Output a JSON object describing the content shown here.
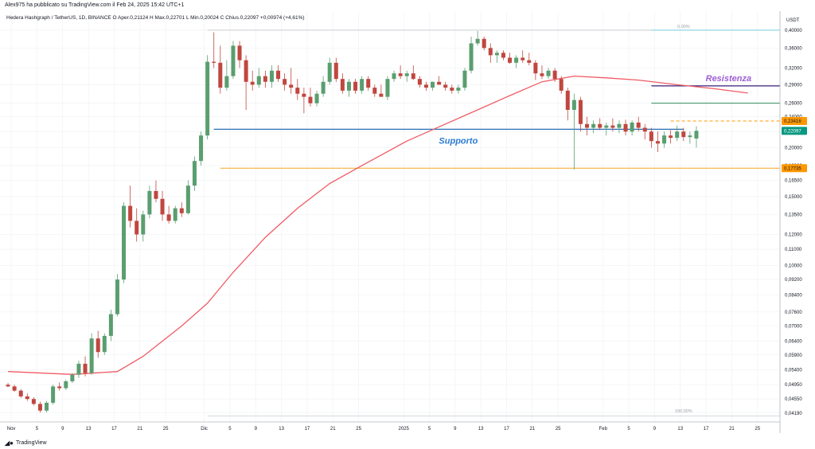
{
  "header": {
    "published": "Alex975 ha pubblicato su TradingView.com il Feb 24, 2025 15:42 UTC+1",
    "legend": "Hedera Hashgraph / TetherUS, 1D, BINANCE  O  Aper.0,21124  H  Max.0,22701  L  Min.0,20024  C  Chius.0,22097  +0,00974 (+4,61%)"
  },
  "footer": {
    "brand": "TradingView",
    "icon": "tradingview-logo-icon"
  },
  "chart_data": {
    "type": "candlestick",
    "currency": "USDT",
    "y_scale": "log",
    "ylim": [
      0.0405,
      0.415
    ],
    "y_ticks": [
      "0,40000",
      "0,36000",
      "0,32000",
      "0,29000",
      "0,26000",
      "0,24000",
      "0,22000",
      "0,20000",
      "0,18000",
      "0,16500",
      "0,15000",
      "0,13500",
      "0,12000",
      "0,11000",
      "0,10000",
      "0,09200",
      "0,08400",
      "0,07600",
      "0,07000",
      "0,06400",
      "0,05900",
      "0,05400",
      "0,04950",
      "0,04550",
      "0,04190"
    ],
    "x_labels": [
      {
        "label": "Nov",
        "date": "2024-11-01"
      },
      {
        "label": "5",
        "date": "2024-11-05"
      },
      {
        "label": "9",
        "date": "2024-11-09"
      },
      {
        "label": "13",
        "date": "2024-11-13"
      },
      {
        "label": "17",
        "date": "2024-11-17"
      },
      {
        "label": "21",
        "date": "2024-11-21"
      },
      {
        "label": "25",
        "date": "2024-11-25"
      },
      {
        "label": "Dic",
        "date": "2024-12-01"
      },
      {
        "label": "5",
        "date": "2024-12-05"
      },
      {
        "label": "9",
        "date": "2024-12-09"
      },
      {
        "label": "13",
        "date": "2024-12-13"
      },
      {
        "label": "17",
        "date": "2024-12-17"
      },
      {
        "label": "21",
        "date": "2024-12-21"
      },
      {
        "label": "25",
        "date": "2024-12-25"
      },
      {
        "label": "2025",
        "date": "2025-01-01"
      },
      {
        "label": "5",
        "date": "2025-01-05"
      },
      {
        "label": "9",
        "date": "2025-01-09"
      },
      {
        "label": "13",
        "date": "2025-01-13"
      },
      {
        "label": "17",
        "date": "2025-01-17"
      },
      {
        "label": "21",
        "date": "2025-01-21"
      },
      {
        "label": "25",
        "date": "2025-01-25"
      },
      {
        "label": "Feb",
        "date": "2025-02-01"
      },
      {
        "label": "5",
        "date": "2025-02-05"
      },
      {
        "label": "9",
        "date": "2025-02-09"
      },
      {
        "label": "13",
        "date": "2025-02-13"
      },
      {
        "label": "17",
        "date": "2025-02-17"
      },
      {
        "label": "21",
        "date": "2025-02-21"
      },
      {
        "label": "25",
        "date": "2025-02-25"
      }
    ],
    "first_date": "2024-10-31",
    "candles": [
      [
        0.0495,
        0.05,
        0.0488,
        0.049
      ],
      [
        0.049,
        0.0495,
        0.0475,
        0.0478
      ],
      [
        0.0478,
        0.0482,
        0.0458,
        0.0462
      ],
      [
        0.0462,
        0.047,
        0.045,
        0.0455
      ],
      [
        0.0455,
        0.046,
        0.0438,
        0.0442
      ],
      [
        0.0442,
        0.0448,
        0.042,
        0.0425
      ],
      [
        0.0425,
        0.045,
        0.042,
        0.0445
      ],
      [
        0.0445,
        0.0495,
        0.044,
        0.049
      ],
      [
        0.049,
        0.0502,
        0.0478,
        0.0485
      ],
      [
        0.0485,
        0.051,
        0.048,
        0.0505
      ],
      [
        0.0505,
        0.053,
        0.05,
        0.0525
      ],
      [
        0.0525,
        0.057,
        0.0515,
        0.056
      ],
      [
        0.056,
        0.0585,
        0.052,
        0.053
      ],
      [
        0.053,
        0.067,
        0.0525,
        0.065
      ],
      [
        0.065,
        0.068,
        0.058,
        0.06
      ],
      [
        0.06,
        0.067,
        0.059,
        0.066
      ],
      [
        0.066,
        0.077,
        0.064,
        0.075
      ],
      [
        0.075,
        0.095,
        0.074,
        0.092
      ],
      [
        0.092,
        0.145,
        0.09,
        0.142
      ],
      [
        0.142,
        0.16,
        0.125,
        0.13
      ],
      [
        0.13,
        0.14,
        0.115,
        0.12
      ],
      [
        0.12,
        0.138,
        0.115,
        0.135
      ],
      [
        0.135,
        0.16,
        0.132,
        0.155
      ],
      [
        0.155,
        0.165,
        0.145,
        0.148
      ],
      [
        0.148,
        0.155,
        0.13,
        0.135
      ],
      [
        0.135,
        0.142,
        0.128,
        0.13
      ],
      [
        0.13,
        0.142,
        0.128,
        0.14
      ],
      [
        0.14,
        0.145,
        0.133,
        0.136
      ],
      [
        0.136,
        0.165,
        0.135,
        0.16
      ],
      [
        0.16,
        0.19,
        0.155,
        0.185
      ],
      [
        0.185,
        0.22,
        0.18,
        0.215
      ],
      [
        0.215,
        0.345,
        0.21,
        0.332
      ],
      [
        0.332,
        0.395,
        0.32,
        0.33
      ],
      [
        0.33,
        0.365,
        0.275,
        0.285
      ],
      [
        0.285,
        0.335,
        0.28,
        0.305
      ],
      [
        0.305,
        0.375,
        0.3,
        0.365
      ],
      [
        0.365,
        0.375,
        0.32,
        0.335
      ],
      [
        0.335,
        0.345,
        0.25,
        0.295
      ],
      [
        0.295,
        0.315,
        0.28,
        0.29
      ],
      [
        0.29,
        0.32,
        0.285,
        0.305
      ],
      [
        0.305,
        0.315,
        0.285,
        0.295
      ],
      [
        0.295,
        0.325,
        0.285,
        0.315
      ],
      [
        0.315,
        0.325,
        0.295,
        0.3
      ],
      [
        0.3,
        0.31,
        0.28,
        0.29
      ],
      [
        0.29,
        0.32,
        0.275,
        0.285
      ],
      [
        0.285,
        0.3,
        0.265,
        0.275
      ],
      [
        0.275,
        0.285,
        0.245,
        0.27
      ],
      [
        0.27,
        0.285,
        0.255,
        0.26
      ],
      [
        0.26,
        0.28,
        0.255,
        0.275
      ],
      [
        0.275,
        0.305,
        0.27,
        0.295
      ],
      [
        0.295,
        0.34,
        0.29,
        0.33
      ],
      [
        0.33,
        0.34,
        0.295,
        0.3
      ],
      [
        0.3,
        0.31,
        0.275,
        0.28
      ],
      [
        0.28,
        0.3,
        0.27,
        0.295
      ],
      [
        0.295,
        0.3,
        0.275,
        0.28
      ],
      [
        0.28,
        0.305,
        0.275,
        0.3
      ],
      [
        0.3,
        0.305,
        0.28,
        0.285
      ],
      [
        0.285,
        0.29,
        0.27,
        0.275
      ],
      [
        0.275,
        0.29,
        0.27,
        0.27
      ],
      [
        0.27,
        0.305,
        0.265,
        0.3
      ],
      [
        0.3,
        0.315,
        0.295,
        0.31
      ],
      [
        0.31,
        0.325,
        0.3,
        0.305
      ],
      [
        0.305,
        0.315,
        0.295,
        0.31
      ],
      [
        0.31,
        0.325,
        0.298,
        0.3
      ],
      [
        0.3,
        0.305,
        0.285,
        0.29
      ],
      [
        0.29,
        0.295,
        0.28,
        0.285
      ],
      [
        0.285,
        0.295,
        0.28,
        0.295
      ],
      [
        0.295,
        0.305,
        0.29,
        0.29
      ],
      [
        0.29,
        0.295,
        0.28,
        0.285
      ],
      [
        0.285,
        0.29,
        0.275,
        0.28
      ],
      [
        0.28,
        0.29,
        0.275,
        0.285
      ],
      [
        0.285,
        0.32,
        0.28,
        0.315
      ],
      [
        0.315,
        0.385,
        0.31,
        0.37
      ],
      [
        0.37,
        0.398,
        0.365,
        0.38
      ],
      [
        0.38,
        0.385,
        0.355,
        0.36
      ],
      [
        0.36,
        0.37,
        0.33,
        0.345
      ],
      [
        0.345,
        0.355,
        0.33,
        0.35
      ],
      [
        0.35,
        0.355,
        0.335,
        0.34
      ],
      [
        0.34,
        0.35,
        0.328,
        0.33
      ],
      [
        0.33,
        0.345,
        0.32,
        0.34
      ],
      [
        0.34,
        0.355,
        0.33,
        0.335
      ],
      [
        0.335,
        0.35,
        0.325,
        0.33
      ],
      [
        0.33,
        0.335,
        0.298,
        0.31
      ],
      [
        0.31,
        0.325,
        0.3,
        0.305
      ],
      [
        0.305,
        0.32,
        0.3,
        0.315
      ],
      [
        0.315,
        0.32,
        0.295,
        0.3
      ],
      [
        0.3,
        0.305,
        0.275,
        0.28
      ],
      [
        0.28,
        0.285,
        0.235,
        0.25
      ],
      [
        0.25,
        0.275,
        0.176,
        0.265
      ],
      [
        0.265,
        0.27,
        0.22,
        0.23
      ],
      [
        0.23,
        0.24,
        0.215,
        0.225
      ],
      [
        0.225,
        0.235,
        0.218,
        0.23
      ],
      [
        0.23,
        0.238,
        0.222,
        0.225
      ],
      [
        0.225,
        0.232,
        0.215,
        0.228
      ],
      [
        0.228,
        0.238,
        0.22,
        0.225
      ],
      [
        0.225,
        0.235,
        0.218,
        0.23
      ],
      [
        0.23,
        0.236,
        0.215,
        0.22
      ],
      [
        0.22,
        0.235,
        0.215,
        0.232
      ],
      [
        0.232,
        0.24,
        0.22,
        0.225
      ],
      [
        0.225,
        0.23,
        0.21,
        0.22
      ],
      [
        0.22,
        0.225,
        0.2,
        0.208
      ],
      [
        0.208,
        0.22,
        0.195,
        0.205
      ],
      [
        0.205,
        0.22,
        0.2,
        0.215
      ],
      [
        0.215,
        0.222,
        0.205,
        0.212
      ],
      [
        0.212,
        0.228,
        0.208,
        0.22
      ],
      [
        0.22,
        0.225,
        0.208,
        0.213
      ],
      [
        0.213,
        0.22,
        0.205,
        0.215
      ],
      [
        0.2112,
        0.227,
        0.2002,
        0.221
      ]
    ],
    "moving_average": [
      [
        "2024-10-31",
        0.0535
      ],
      [
        "2024-11-10",
        0.0526
      ],
      [
        "2024-11-17",
        0.0535
      ],
      [
        "2024-11-21",
        0.0585
      ],
      [
        "2024-11-27",
        0.07
      ],
      [
        "2024-12-01",
        0.08
      ],
      [
        "2024-12-05",
        0.096
      ],
      [
        "2024-12-10",
        0.118
      ],
      [
        "2024-12-15",
        0.14
      ],
      [
        "2024-12-20",
        0.162
      ],
      [
        "2024-12-25",
        0.18
      ],
      [
        "2025-01-01",
        0.208
      ],
      [
        "2025-01-07",
        0.23
      ],
      [
        "2025-01-12",
        0.25
      ],
      [
        "2025-01-17",
        0.272
      ],
      [
        "2025-01-22",
        0.295
      ],
      [
        "2025-01-27",
        0.305
      ],
      [
        "2025-02-01",
        0.302
      ],
      [
        "2025-02-06",
        0.298
      ],
      [
        "2025-02-12",
        0.29
      ],
      [
        "2025-02-18",
        0.283
      ],
      [
        "2025-02-23",
        0.276
      ]
    ],
    "levels": [
      {
        "name": "support-line",
        "label": "",
        "price": 0.223,
        "from": "2024-12-02",
        "to": "2025-02-13",
        "color": "#2a6fb5"
      },
      {
        "name": "low-level-line",
        "label": "",
        "price": 0.1773,
        "from": "2024-12-03",
        "to": "2025-02-28",
        "color": "#f5a623"
      },
      {
        "name": "resistance-line",
        "label": "",
        "price": 0.288,
        "from": "2025-02-08",
        "to": "2025-02-28",
        "color": "#3d1f7a"
      },
      {
        "name": "green-level-line",
        "label": "",
        "price": 0.26,
        "from": "2025-02-08",
        "to": "2025-02-28",
        "color": "#2e8b57"
      },
      {
        "name": "dashed-price-line",
        "label": "",
        "price": 0.2342,
        "from": "2025-02-11",
        "to": "2025-02-28",
        "color": "#ff9800",
        "dashed": true
      },
      {
        "name": "fib-top-line",
        "label": "",
        "price": 0.4,
        "from": "2024-12-01",
        "to": "2025-02-28",
        "color": "#c9cdd3"
      },
      {
        "name": "fib-top-right-line",
        "label": "",
        "price": 0.4,
        "from": "2025-02-08",
        "to": "2025-02-28",
        "color": "#7fd6e8"
      }
    ],
    "fib_labels": [
      {
        "text": "0,00%",
        "price": 0.405
      },
      {
        "text": "100,00%",
        "price": 0.042
      }
    ],
    "price_tags": [
      {
        "text": "0,23416",
        "price": 0.23416,
        "bg": "#ff9800",
        "fg": "#131722"
      },
      {
        "text": "0,22097",
        "price": 0.22097,
        "bg": "#089981",
        "fg": "#ffffff"
      },
      {
        "text": "0,17735",
        "price": 0.17735,
        "bg": "#ff9800",
        "fg": "#131722"
      }
    ],
    "annotations": [
      {
        "text": "Supporto",
        "color": "#2a7bd1",
        "date": "2025-01-09",
        "price": 0.205
      },
      {
        "text": "Resistenza",
        "color": "#9c5fd6",
        "date": "2025-02-20",
        "price": 0.296
      }
    ],
    "colors": {
      "up": "#5a9e6f",
      "down": "#c0473f",
      "ma": "#ef5b64",
      "grid": "#eef0f3",
      "axis": "#b2b5be"
    }
  }
}
